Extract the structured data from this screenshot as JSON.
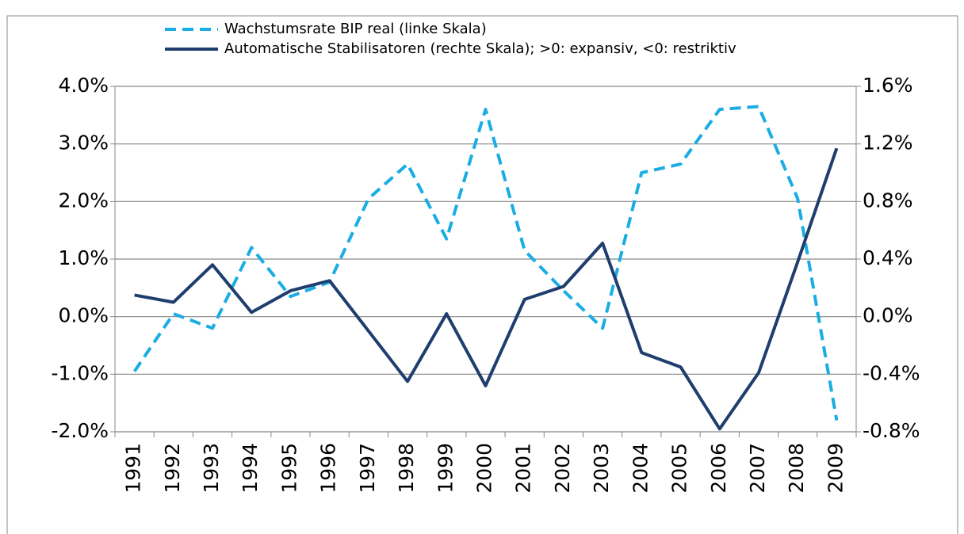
{
  "chart_data": {
    "type": "line",
    "categories": [
      "1991",
      "1992",
      "1993",
      "1994",
      "1995",
      "1996",
      "1997",
      "1998",
      "1999",
      "2000",
      "2001",
      "2002",
      "2003",
      "2004",
      "2005",
      "2006",
      "2007",
      "2008",
      "2009"
    ],
    "series": [
      {
        "name": "Wachstumsrate BIP real (linke Skala)",
        "color": "#1aade4",
        "dashed": true,
        "values": [
          -0.95,
          0.05,
          -0.2,
          1.2,
          0.35,
          0.6,
          2.05,
          2.65,
          1.35,
          3.6,
          1.15,
          0.45,
          -0.2,
          2.5,
          2.65,
          3.6,
          3.65,
          2.05,
          -1.8
        ]
      },
      {
        "name": "Automatische Stabilisatoren (rechte Skala); >0: expansiv, <0: restriktiv",
        "color": "#1f3e6e",
        "axis": "y2",
        "values": [
          0.15,
          0.1,
          0.36,
          0.03,
          0.18,
          0.25,
          -0.1,
          -0.45,
          0.02,
          -0.48,
          0.12,
          0.21,
          0.51,
          -0.25,
          -0.35,
          -0.78,
          -0.39,
          0.38,
          1.17
        ]
      }
    ],
    "ylim": [
      -2,
      4
    ],
    "yticks": [
      {
        "value": -2,
        "label": "-2.0%"
      },
      {
        "value": -1,
        "label": "-1.0%"
      },
      {
        "value": 0,
        "label": "0.0%"
      },
      {
        "value": 1,
        "label": "1.0%"
      },
      {
        "value": 2,
        "label": "2.0%"
      },
      {
        "value": 3,
        "label": "3.0%"
      },
      {
        "value": 4,
        "label": "4.0%"
      }
    ],
    "y2lim": [
      -0.8,
      1.6
    ],
    "y2ticks": [
      {
        "value": -0.8,
        "label": "-0.8%"
      },
      {
        "value": -0.4,
        "label": "-0.4%"
      },
      {
        "value": 0,
        "label": "0.0%"
      },
      {
        "value": 0.4,
        "label": "0.4%"
      },
      {
        "value": 0.8,
        "label": "0.8%"
      },
      {
        "value": 1.2,
        "label": "1.2%"
      },
      {
        "value": 1.6,
        "label": "1.6%"
      }
    ],
    "grid": true
  }
}
